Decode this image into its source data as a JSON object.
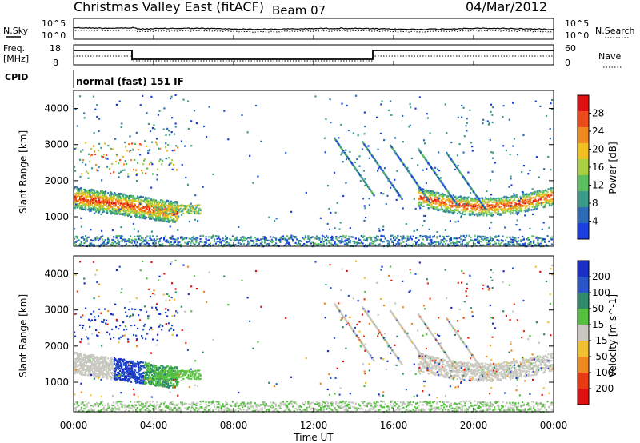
{
  "header": {
    "title_left": "Christmas Valley East (fitACF)",
    "title_mid": "Beam 07",
    "date": "04/Mar/2012"
  },
  "panels": {
    "nsky": {
      "left_label": "N.Sky",
      "ticks_left": [
        "10^5",
        "10^0"
      ],
      "ticks_right": [
        "10^5",
        "10^0"
      ],
      "right_label": "N.Search"
    },
    "freq": {
      "left_label_1": "Freq.",
      "left_label_2": "[MHz]",
      "ticks_left": [
        "18",
        "8"
      ],
      "ticks_right": [
        "60",
        "0"
      ],
      "right_label": "Nave"
    },
    "cpid": {
      "label": "CPID",
      "text": "normal (fast) 151 IF"
    }
  },
  "chart_data": [
    {
      "type": "heatmap",
      "name": "power",
      "ylabel": "Slant Range [km]",
      "yticks": [
        "1000",
        "2000",
        "3000",
        "4000"
      ],
      "colorbar_label": "Power [dB]",
      "colorbar_ticks": [
        "4",
        "8",
        "12",
        "16",
        "20",
        "24",
        "28"
      ],
      "colors": [
        "#1a3fe0",
        "#2d6bb8",
        "#3c9a8a",
        "#5cbf60",
        "#a8d040",
        "#f0c020",
        "#f08a20",
        "#ec4a1a",
        "#e01010"
      ],
      "ylim": [
        180,
        4500
      ]
    },
    {
      "type": "heatmap",
      "name": "velocity",
      "ylabel": "Slant Range [km]",
      "yticks": [
        "1000",
        "2000",
        "3000",
        "4000"
      ],
      "colorbar_label": "Velocity [m s^-1]",
      "colorbar_ticks": [
        "200",
        "100",
        "50",
        "15",
        "-15",
        "-50",
        "-100",
        "-200"
      ],
      "colors": [
        "#1a2fc8",
        "#2a55c8",
        "#2e8a6a",
        "#55c040",
        "#c8c8c0",
        "#f0c030",
        "#f08a20",
        "#e83a10",
        "#e01010"
      ],
      "ylim": [
        180,
        4500
      ]
    }
  ],
  "xaxis": {
    "ticks": [
      "00:00",
      "04:00",
      "08:00",
      "12:00",
      "16:00",
      "20:00",
      "00:00"
    ],
    "label": "Time UT"
  }
}
